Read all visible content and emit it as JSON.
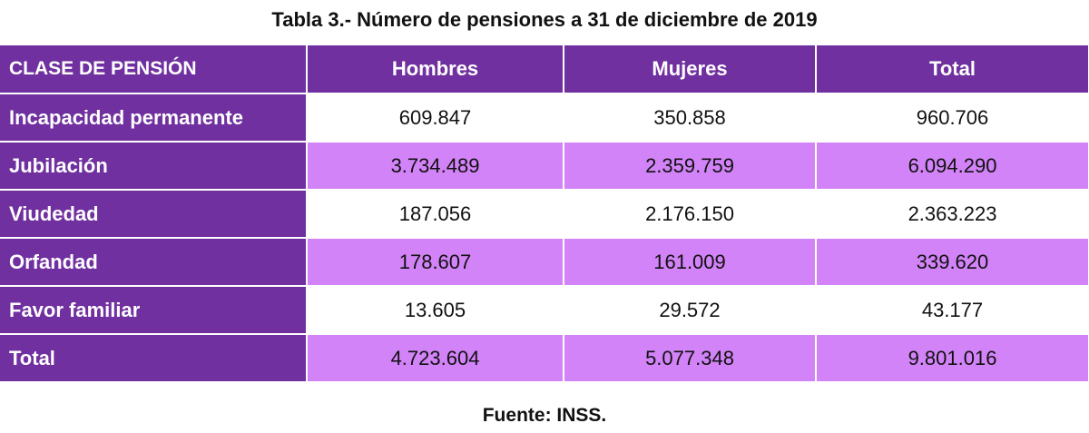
{
  "title": "Tabla 3.- Número de pensiones a 31 de diciembre de 2019",
  "table": {
    "headers": [
      "CLASE DE PENSIÓN",
      "Hombres",
      "Mujeres",
      "Total"
    ],
    "rows": [
      {
        "label": "Incapacidad permanente",
        "hombres": "609.847",
        "mujeres": "350.858",
        "total": "960.706"
      },
      {
        "label": "Jubilación",
        "hombres": "3.734.489",
        "mujeres": "2.359.759",
        "total": "6.094.290"
      },
      {
        "label": "Viudedad",
        "hombres": "187.056",
        "mujeres": "2.176.150",
        "total": "2.363.223"
      },
      {
        "label": "Orfandad",
        "hombres": "178.607",
        "mujeres": "161.009",
        "total": "339.620"
      },
      {
        "label": "Favor familiar",
        "hombres": "13.605",
        "mujeres": "29.572",
        "total": "43.177"
      },
      {
        "label": "Total",
        "hombres": "4.723.604",
        "mujeres": "5.077.348",
        "total": "9.801.016"
      }
    ]
  },
  "source": "Fuente: INSS.",
  "colors": {
    "header_purple": "#7030a0",
    "row_light_purple": "#d283f7",
    "row_white": "#ffffff"
  }
}
